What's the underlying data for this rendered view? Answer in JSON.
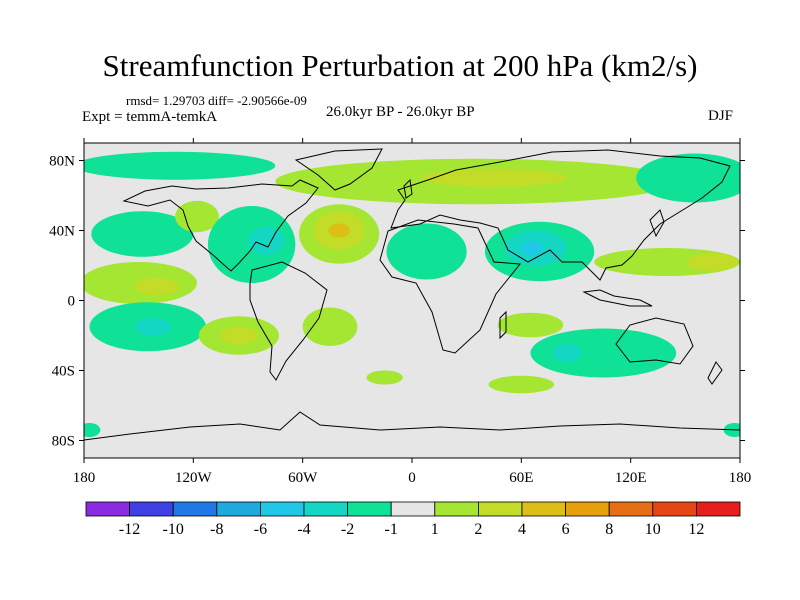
{
  "chart_data": {
    "type": "heatmap",
    "title": "Streamfunction Perturbation at 200 hPa (km2/s)",
    "stats_line": "rmsd= 1.29703 diff= -2.90566e-09",
    "left_label": "Expt = temmA-temkA",
    "center_label": "26.0kyr BP - 26.0kyr BP",
    "right_label": "DJF",
    "projection": "cylindrical-equidistant",
    "xlim": [
      -180,
      180
    ],
    "ylim": [
      -90,
      90
    ],
    "x_ticks": [
      {
        "value": -180,
        "label": "180"
      },
      {
        "value": -120,
        "label": "120W"
      },
      {
        "value": -60,
        "label": "60W"
      },
      {
        "value": 0,
        "label": "0"
      },
      {
        "value": 60,
        "label": "60E"
      },
      {
        "value": 120,
        "label": "120E"
      },
      {
        "value": 180,
        "label": "180"
      }
    ],
    "y_ticks": [
      {
        "value": 80,
        "label": "80N"
      },
      {
        "value": 40,
        "label": "40N"
      },
      {
        "value": 0,
        "label": "0"
      },
      {
        "value": -40,
        "label": "40S"
      },
      {
        "value": -80,
        "label": "80S"
      }
    ],
    "colorbar": {
      "levels": [
        -12,
        -10,
        -8,
        -6,
        -4,
        -2,
        -1,
        1,
        2,
        4,
        6,
        8,
        10,
        12
      ],
      "colors": [
        "#8a2be2",
        "#3f3fe6",
        "#1e78e6",
        "#1eaadc",
        "#1ec8e6",
        "#14d7c3",
        "#0fe196",
        "#e6e6e6",
        "#a5e632",
        "#c3dc28",
        "#dcbe14",
        "#e6a00a",
        "#e66e14",
        "#e64614",
        "#e61e1e"
      ]
    },
    "contour_regions": [
      {
        "name": "arctic-positive-band",
        "level": 1,
        "lon": 35,
        "lat": 68,
        "rx": 110,
        "ry": 13
      },
      {
        "name": "arctic-positive-core",
        "level": 2,
        "lon": 45,
        "lat": 70,
        "rx": 40,
        "ry": 5
      },
      {
        "name": "arctic-negative-west",
        "level": -1,
        "lon": -130,
        "lat": 77,
        "rx": 55,
        "ry": 8
      },
      {
        "name": "arctic-negative-east",
        "level": -1,
        "lon": 155,
        "lat": 70,
        "rx": 32,
        "ry": 14
      },
      {
        "name": "pacific-east-negative",
        "level": -1,
        "lon": -148,
        "lat": 38,
        "rx": 28,
        "ry": 13
      },
      {
        "name": "central-pacific-positive",
        "level": 1,
        "lon": -150,
        "lat": 10,
        "rx": 32,
        "ry": 12
      },
      {
        "name": "central-pacific-positive-core",
        "level": 2,
        "lon": -140,
        "lat": 8,
        "rx": 12,
        "ry": 5
      },
      {
        "name": "na-west-coast-positive",
        "level": 1,
        "lon": -118,
        "lat": 48,
        "rx": 12,
        "ry": 9
      },
      {
        "name": "north-america-negative",
        "level": -1,
        "lon": -88,
        "lat": 32,
        "rx": 24,
        "ry": 22
      },
      {
        "name": "north-america-negative-core",
        "level": -2,
        "lon": -80,
        "lat": 34,
        "rx": 10,
        "ry": 8
      },
      {
        "name": "north-atlantic-positive",
        "level": 1,
        "lon": -40,
        "lat": 38,
        "rx": 22,
        "ry": 17
      },
      {
        "name": "north-atlantic-positive-mid",
        "level": 2,
        "lon": -40,
        "lat": 40,
        "rx": 14,
        "ry": 11
      },
      {
        "name": "north-atlantic-positive-core",
        "level": 4,
        "lon": -40,
        "lat": 40,
        "rx": 6,
        "ry": 4
      },
      {
        "name": "africa-negative",
        "level": -1,
        "lon": 8,
        "lat": 28,
        "rx": 22,
        "ry": 16
      },
      {
        "name": "asia-negative",
        "level": -1,
        "lon": 70,
        "lat": 28,
        "rx": 30,
        "ry": 17
      },
      {
        "name": "asia-negative-mid",
        "level": -2,
        "lon": 68,
        "lat": 30,
        "rx": 17,
        "ry": 10
      },
      {
        "name": "asia-negative-core",
        "level": -4,
        "lon": 66,
        "lat": 30,
        "rx": 6,
        "ry": 4
      },
      {
        "name": "west-pacific-positive",
        "level": 1,
        "lon": 140,
        "lat": 22,
        "rx": 40,
        "ry": 8
      },
      {
        "name": "west-pacific-positive-core",
        "level": 2,
        "lon": 165,
        "lat": 22,
        "rx": 14,
        "ry": 5
      },
      {
        "name": "south-pacific-negative",
        "level": -1,
        "lon": -145,
        "lat": -15,
        "rx": 32,
        "ry": 14
      },
      {
        "name": "south-pacific-negative-core",
        "level": -2,
        "lon": -142,
        "lat": -15,
        "rx": 10,
        "ry": 5
      },
      {
        "name": "south-america-west-positive",
        "level": 1,
        "lon": -95,
        "lat": -20,
        "rx": 22,
        "ry": 11
      },
      {
        "name": "south-america-west-positive-core",
        "level": 2,
        "lon": -95,
        "lat": -20,
        "rx": 10,
        "ry": 5
      },
      {
        "name": "south-atlantic-positive",
        "level": 1,
        "lon": -45,
        "lat": -15,
        "rx": 15,
        "ry": 11
      },
      {
        "name": "southern-ocean-positive",
        "level": 1,
        "lon": -15,
        "lat": -44,
        "rx": 10,
        "ry": 4
      },
      {
        "name": "indian-ocean-positive",
        "level": 1,
        "lon": 65,
        "lat": -14,
        "rx": 18,
        "ry": 7
      },
      {
        "name": "australia-negative",
        "level": -1,
        "lon": 105,
        "lat": -30,
        "rx": 40,
        "ry": 14
      },
      {
        "name": "australia-negative-core",
        "level": -2,
        "lon": 85,
        "lat": -30,
        "rx": 8,
        "ry": 5
      },
      {
        "name": "southern-indian-positive",
        "level": 1,
        "lon": 60,
        "lat": -48,
        "rx": 18,
        "ry": 5
      },
      {
        "name": "antarctic-coast-negative-west",
        "level": -1,
        "lon": -177,
        "lat": -74,
        "rx": 6,
        "ry": 4
      },
      {
        "name": "antarctic-coast-negative-east",
        "level": -1,
        "lon": 177,
        "lat": -74,
        "rx": 6,
        "ry": 4
      }
    ]
  }
}
